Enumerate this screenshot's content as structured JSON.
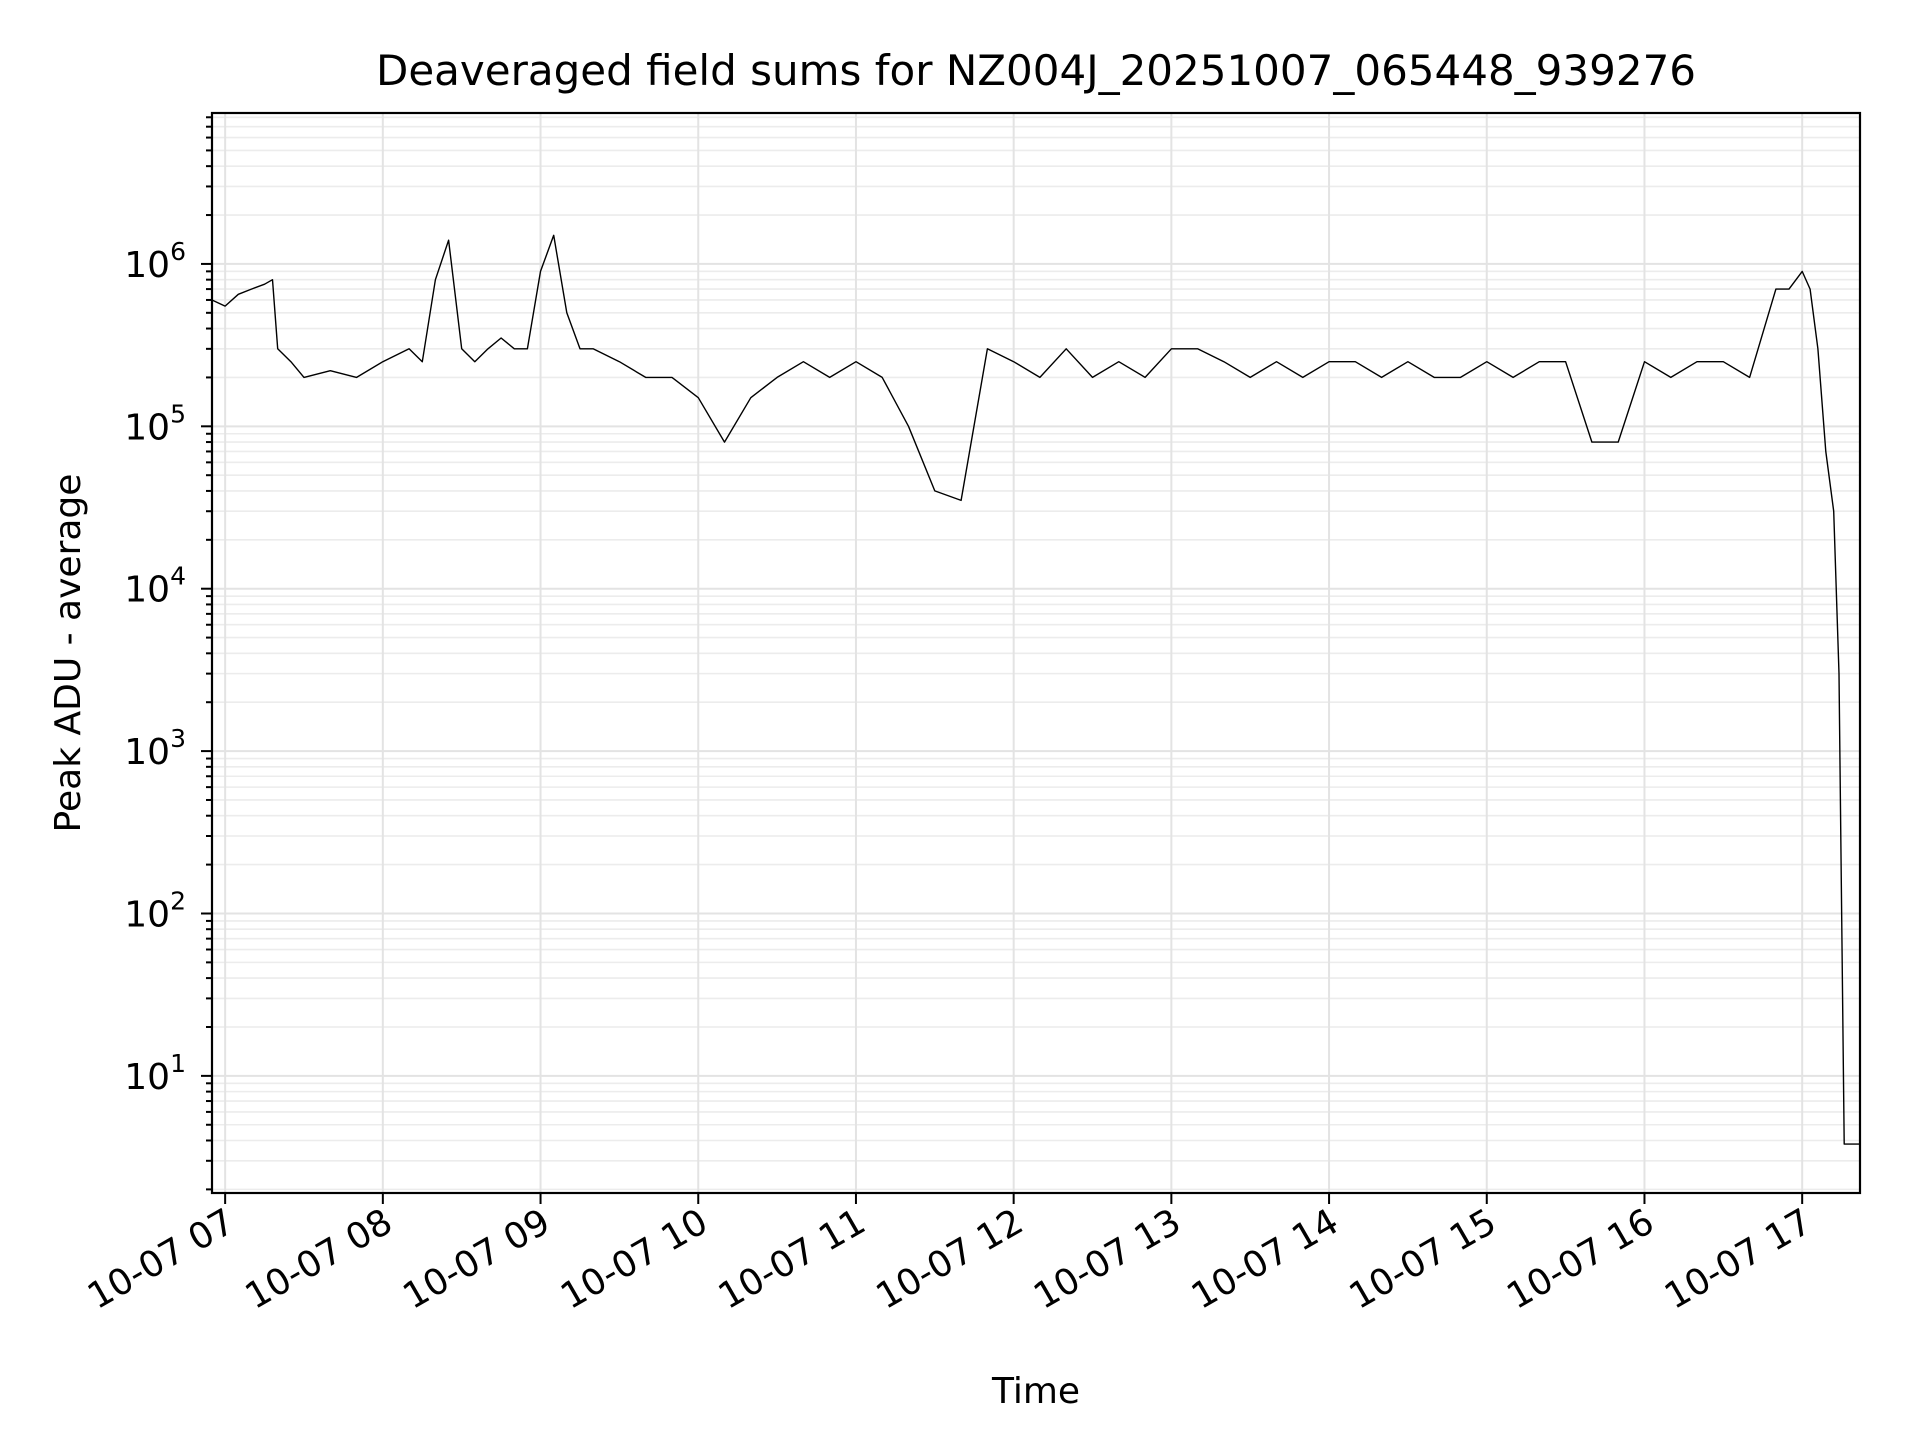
{
  "chart_data": {
    "type": "line",
    "title": "Deaveraged field sums for NZ004J_20251007_065448_939276",
    "xlabel": "Time",
    "ylabel": "Peak ADU - average",
    "y_scale": "log",
    "ylim": [
      1.9,
      8500000
    ],
    "y_ticks": [
      {
        "value": 10,
        "base": "10",
        "exp": "1"
      },
      {
        "value": 100,
        "base": "10",
        "exp": "2"
      },
      {
        "value": 1000,
        "base": "10",
        "exp": "3"
      },
      {
        "value": 10000,
        "base": "10",
        "exp": "4"
      },
      {
        "value": 100000,
        "base": "10",
        "exp": "5"
      },
      {
        "value": 1000000,
        "base": "10",
        "exp": "6"
      }
    ],
    "x_ticks": [
      {
        "hour": 7,
        "label": "10-07 07"
      },
      {
        "hour": 8,
        "label": "10-07 08"
      },
      {
        "hour": 9,
        "label": "10-07 09"
      },
      {
        "hour": 10,
        "label": "10-07 10"
      },
      {
        "hour": 11,
        "label": "10-07 11"
      },
      {
        "hour": 12,
        "label": "10-07 12"
      },
      {
        "hour": 13,
        "label": "10-07 13"
      },
      {
        "hour": 14,
        "label": "10-07 14"
      },
      {
        "hour": 15,
        "label": "10-07 15"
      },
      {
        "hour": 16,
        "label": "10-07 16"
      },
      {
        "hour": 17,
        "label": "10-07 17"
      }
    ],
    "xlim": [
      "10-07 06:55",
      "10-07 17:22"
    ],
    "grid": true,
    "line_color": "#000000",
    "series": [
      {
        "x": [
          "10-07 06:55",
          "10-07 07:00",
          "10-07 07:05",
          "10-07 07:10",
          "10-07 07:15",
          "10-07 07:18",
          "10-07 07:20",
          "10-07 07:25",
          "10-07 07:30",
          "10-07 07:40",
          "10-07 07:50",
          "10-07 08:00",
          "10-07 08:10",
          "10-07 08:15",
          "10-07 08:20",
          "10-07 08:25",
          "10-07 08:30",
          "10-07 08:35",
          "10-07 08:40",
          "10-07 08:45",
          "10-07 08:50",
          "10-07 08:55",
          "10-07 09:00",
          "10-07 09:05",
          "10-07 09:10",
          "10-07 09:15",
          "10-07 09:20",
          "10-07 09:30",
          "10-07 09:40",
          "10-07 09:50",
          "10-07 10:00",
          "10-07 10:10",
          "10-07 10:20",
          "10-07 10:30",
          "10-07 10:40",
          "10-07 10:50",
          "10-07 11:00",
          "10-07 11:10",
          "10-07 11:20",
          "10-07 11:30",
          "10-07 11:40",
          "10-07 11:50",
          "10-07 12:00",
          "10-07 12:10",
          "10-07 12:20",
          "10-07 12:30",
          "10-07 12:40",
          "10-07 12:50",
          "10-07 13:00",
          "10-07 13:10",
          "10-07 13:20",
          "10-07 13:30",
          "10-07 13:40",
          "10-07 13:50",
          "10-07 14:00",
          "10-07 14:10",
          "10-07 14:20",
          "10-07 14:30",
          "10-07 14:40",
          "10-07 14:50",
          "10-07 15:00",
          "10-07 15:10",
          "10-07 15:20",
          "10-07 15:30",
          "10-07 15:40",
          "10-07 15:50",
          "10-07 16:00",
          "10-07 16:10",
          "10-07 16:20",
          "10-07 16:30",
          "10-07 16:40",
          "10-07 16:50",
          "10-07 16:55",
          "10-07 17:00",
          "10-07 17:03",
          "10-07 17:06",
          "10-07 17:09",
          "10-07 17:12",
          "10-07 17:14",
          "10-07 17:16",
          "10-07 17:18",
          "10-07 17:22"
        ],
        "y": [
          600000,
          550000,
          650000,
          700000,
          750000,
          800000,
          300000,
          250000,
          200000,
          220000,
          200000,
          250000,
          300000,
          250000,
          800000,
          1400000,
          300000,
          250000,
          300000,
          350000,
          300000,
          300000,
          900000,
          1500000,
          500000,
          300000,
          300000,
          250000,
          200000,
          200000,
          150000,
          80000,
          150000,
          200000,
          250000,
          200000,
          250000,
          200000,
          100000,
          40000,
          35000,
          300000,
          250000,
          200000,
          300000,
          200000,
          250000,
          200000,
          300000,
          300000,
          250000,
          200000,
          250000,
          200000,
          250000,
          250000,
          200000,
          250000,
          200000,
          200000,
          250000,
          200000,
          250000,
          250000,
          80000,
          80000,
          250000,
          200000,
          250000,
          250000,
          200000,
          700000,
          700000,
          900000,
          700000,
          300000,
          70000,
          30000,
          3000,
          3.8,
          3.8,
          3.8
        ]
      }
    ]
  }
}
